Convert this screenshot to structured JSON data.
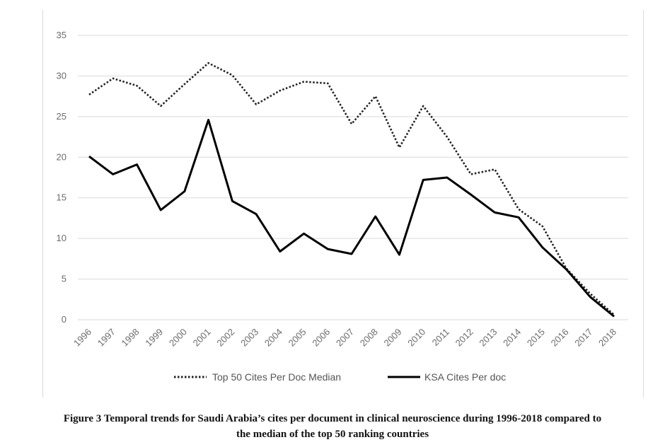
{
  "chart_data": {
    "type": "line",
    "categories": [
      "1996",
      "1997",
      "1998",
      "1999",
      "2000",
      "2001",
      "2002",
      "2003",
      "2004",
      "2005",
      "2006",
      "2007",
      "2008",
      "2009",
      "2010",
      "2011",
      "2012",
      "2013",
      "2014",
      "2015",
      "2016",
      "2017",
      "2018"
    ],
    "series": [
      {
        "name": "Top 50 Cites Per Doc Median",
        "style": "dotted",
        "color": "#222222",
        "values": [
          27.7,
          29.7,
          28.8,
          26.3,
          29.0,
          31.6,
          30.1,
          26.5,
          28.2,
          29.3,
          29.1,
          24.1,
          27.5,
          21.2,
          26.3,
          22.5,
          17.9,
          18.5,
          13.6,
          11.5,
          6.3,
          3.2,
          0.6
        ]
      },
      {
        "name": "KSA Cites Per doc",
        "style": "solid",
        "color": "#000000",
        "values": [
          20.1,
          17.9,
          19.1,
          13.5,
          15.8,
          24.6,
          14.6,
          13.0,
          8.4,
          10.6,
          8.7,
          8.1,
          12.7,
          8.0,
          17.2,
          17.5,
          15.4,
          13.2,
          12.6,
          8.9,
          6.2,
          2.8,
          0.4
        ]
      }
    ],
    "ylim": [
      0,
      35
    ],
    "yticks": [
      0,
      5,
      10,
      15,
      20,
      25,
      30,
      35
    ],
    "grid": true,
    "legend_position": "bottom",
    "xlabel": "",
    "ylabel": ""
  },
  "caption": {
    "line1": "Figure 3 Temporal trends for Saudi Arabia’s cites per document in clinical neuroscience during 1996-2018 compared to",
    "line2": "the median of the top 50 ranking countries"
  }
}
